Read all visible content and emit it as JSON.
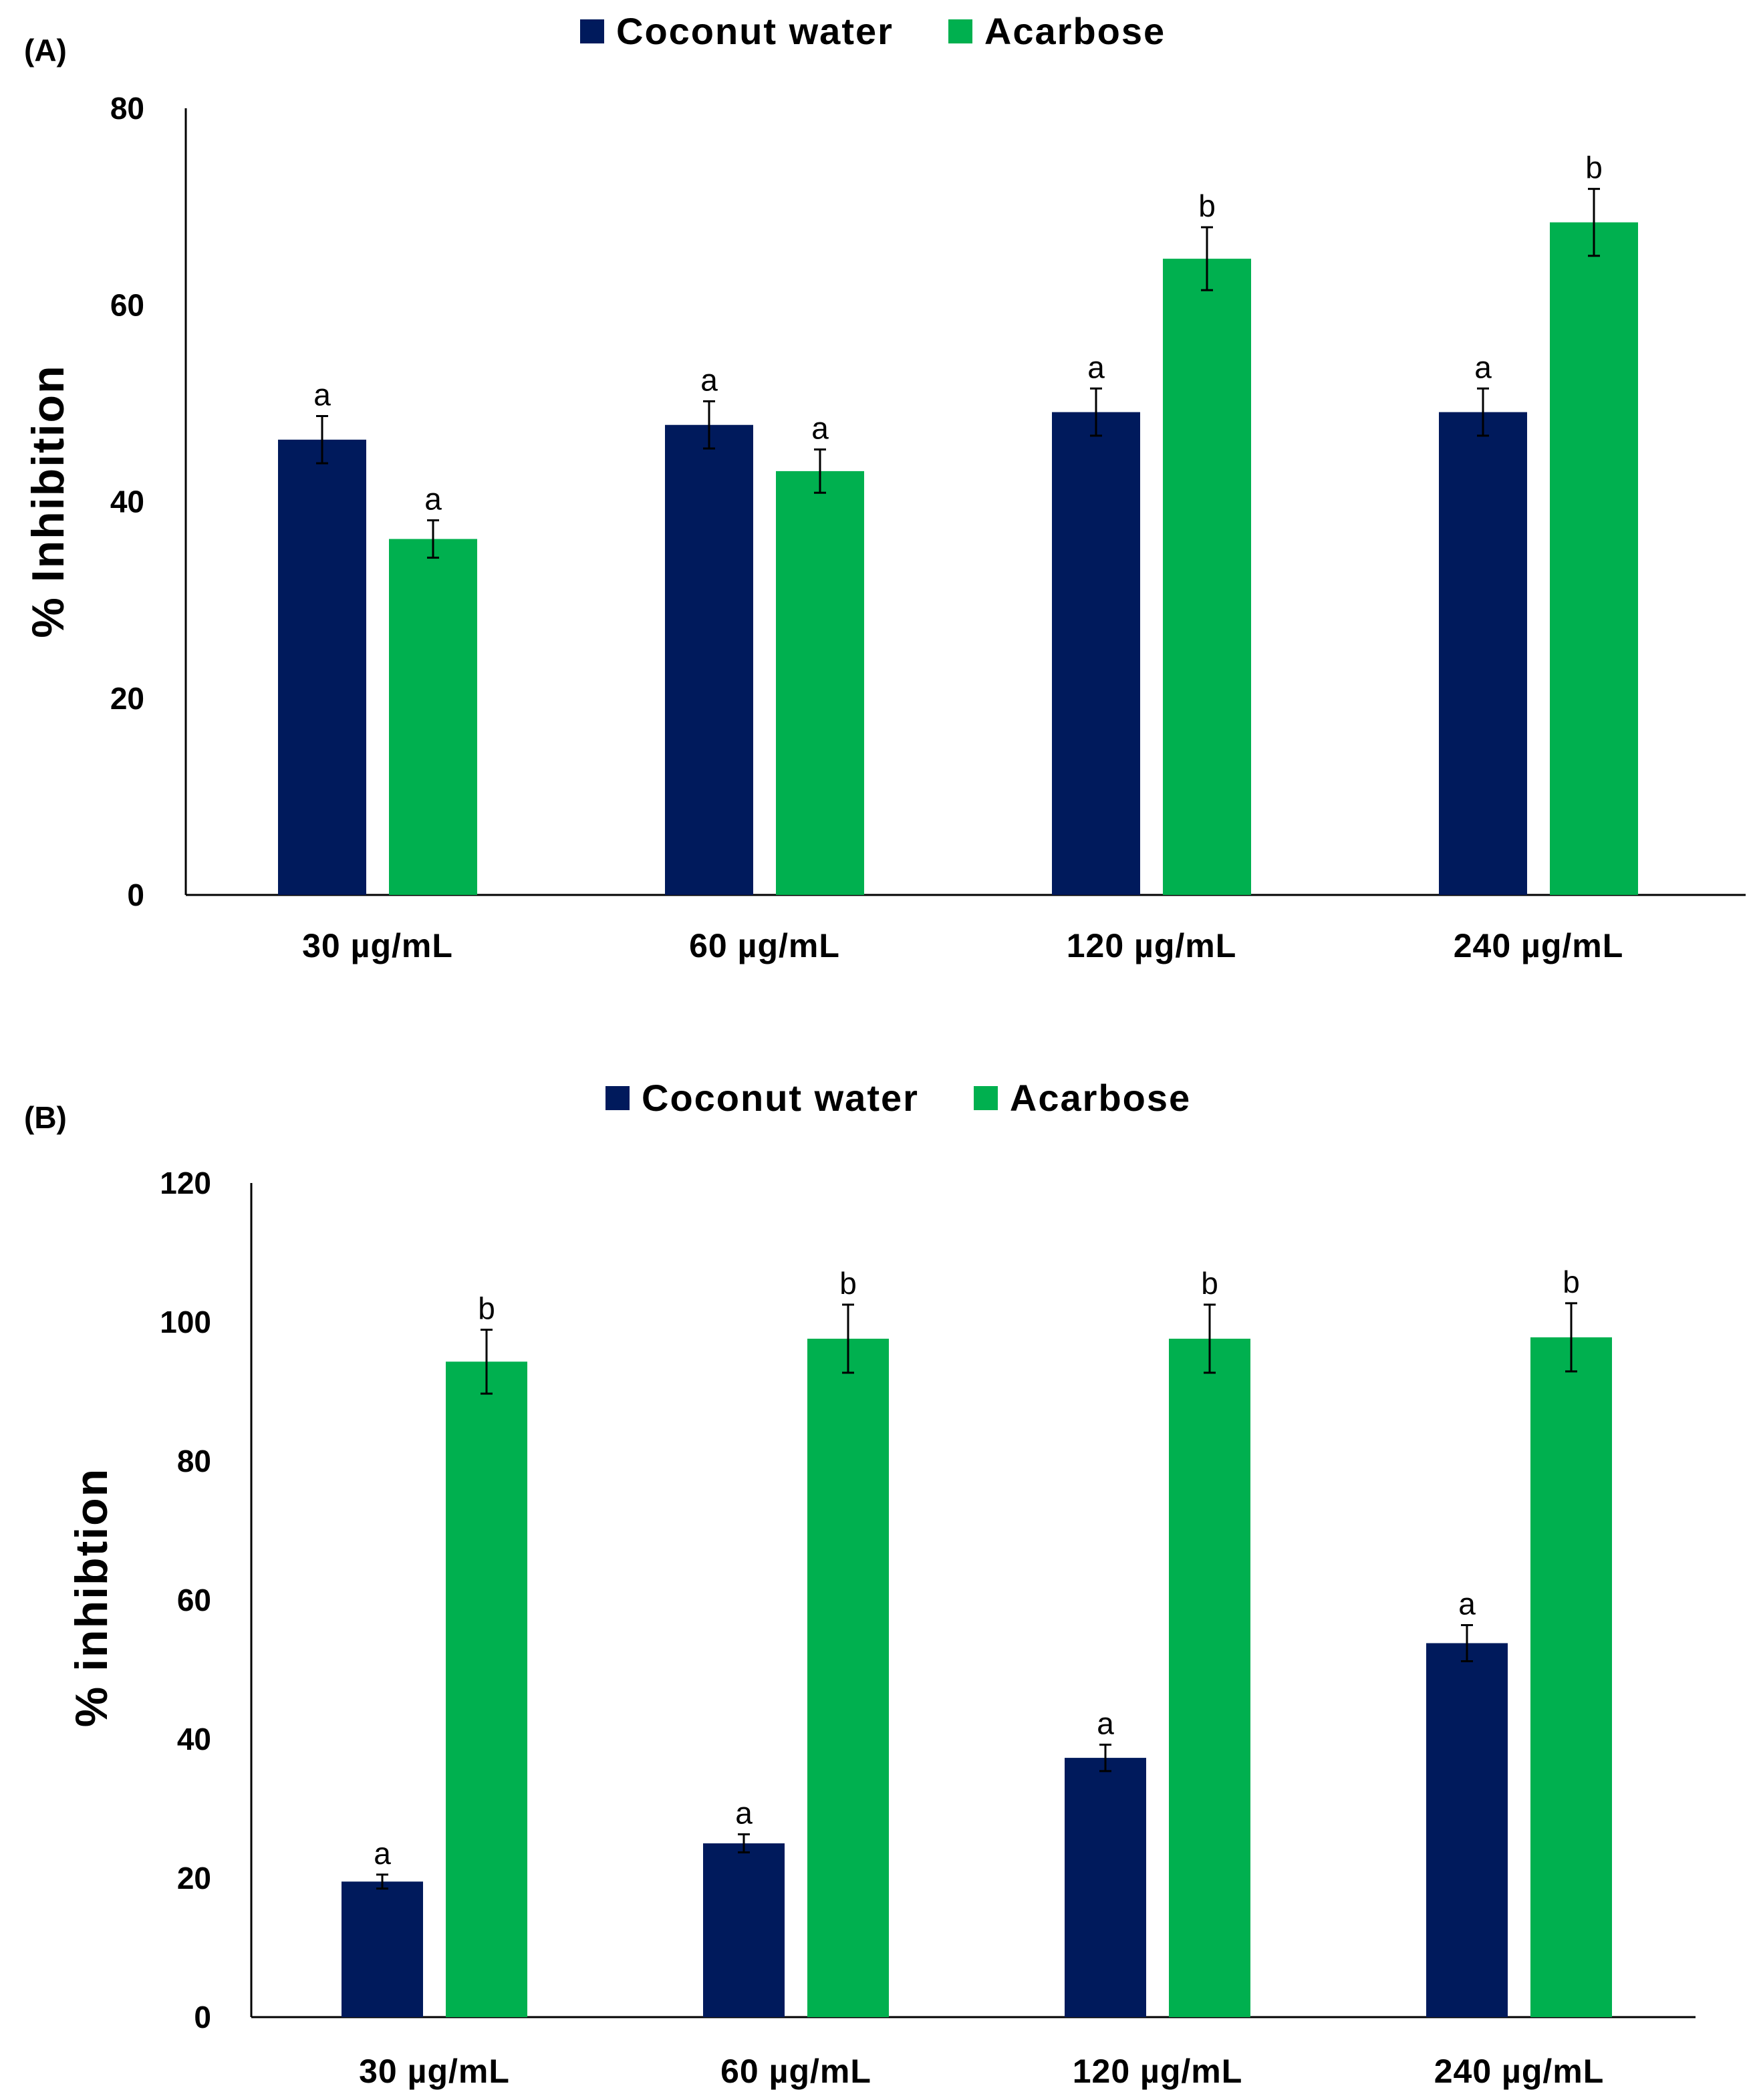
{
  "colors": {
    "coconut": "#001a5c",
    "acarbose": "#00b04f"
  },
  "chart_data": [
    {
      "panel": "(A)",
      "type": "bar",
      "categories": [
        "30 µg/mL",
        "60 µg/mL",
        "120 µg/mL",
        "240 µg/mL"
      ],
      "series": [
        {
          "name": "Coconut water",
          "values": [
            46.3,
            47.8,
            49.1,
            49.1
          ],
          "errors": [
            2.4,
            2.4,
            2.4,
            2.4
          ],
          "letters": [
            "a",
            "a",
            "a",
            "a"
          ]
        },
        {
          "name": "Acarbose",
          "values": [
            36.2,
            43.1,
            64.7,
            68.4
          ],
          "errors": [
            1.9,
            2.2,
            3.2,
            3.4
          ],
          "letters": [
            "a",
            "a",
            "b",
            "b"
          ]
        }
      ],
      "ylabel": "% Inhibition",
      "ylim": [
        0,
        80
      ],
      "yticks": [
        "0",
        "20",
        "40",
        "60",
        "80"
      ],
      "legend": "top-center"
    },
    {
      "panel": "(B)",
      "type": "bar",
      "categories": [
        "30 µg/mL",
        "60 µg/mL",
        "120 µg/mL",
        "240 µg/mL"
      ],
      "series": [
        {
          "name": "Coconut water",
          "values": [
            19.5,
            25.0,
            37.3,
            53.8
          ],
          "errors": [
            1.0,
            1.3,
            1.9,
            2.6
          ],
          "letters": [
            "a",
            "a",
            "a",
            "a"
          ]
        },
        {
          "name": "Acarbose",
          "values": [
            94.3,
            97.6,
            97.6,
            97.8
          ],
          "errors": [
            4.6,
            4.9,
            4.9,
            4.9
          ],
          "letters": [
            "b",
            "b",
            "b",
            "b"
          ]
        }
      ],
      "ylabel": "% inhibtion",
      "ylim": [
        0,
        120
      ],
      "yticks": [
        "0",
        "20",
        "40",
        "60",
        "80",
        "100",
        "120"
      ],
      "legend": "top-center"
    }
  ]
}
